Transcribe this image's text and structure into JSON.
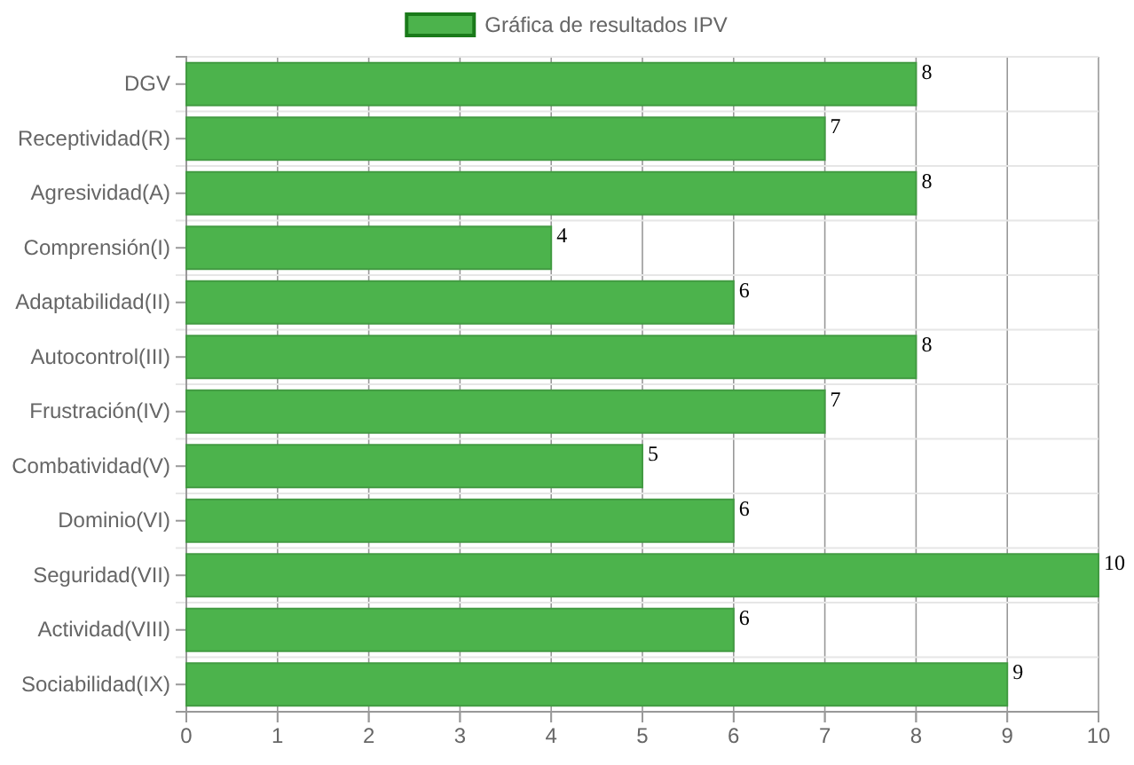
{
  "chart_data": {
    "type": "bar",
    "orientation": "horizontal",
    "categories": [
      "DGV",
      "Receptividad(R)",
      "Agresividad(A)",
      "Comprensión(I)",
      "Adaptabilidad(II)",
      "Autocontrol(III)",
      "Frustración(IV)",
      "Combatividad(V)",
      "Dominio(VI)",
      "Seguridad(VII)",
      "Actividad(VIII)",
      "Sociabilidad(IX)"
    ],
    "series": [
      {
        "name": "Gráfica de resultados IPV",
        "color": "#4cb34c",
        "values": [
          8,
          7,
          8,
          4,
          6,
          8,
          7,
          5,
          6,
          10,
          6,
          9
        ]
      }
    ],
    "xlim": [
      0,
      10
    ],
    "xticks": [
      0,
      1,
      2,
      3,
      4,
      5,
      6,
      7,
      8,
      9,
      10
    ],
    "grid": true,
    "legend": "top",
    "data_labels": true
  }
}
